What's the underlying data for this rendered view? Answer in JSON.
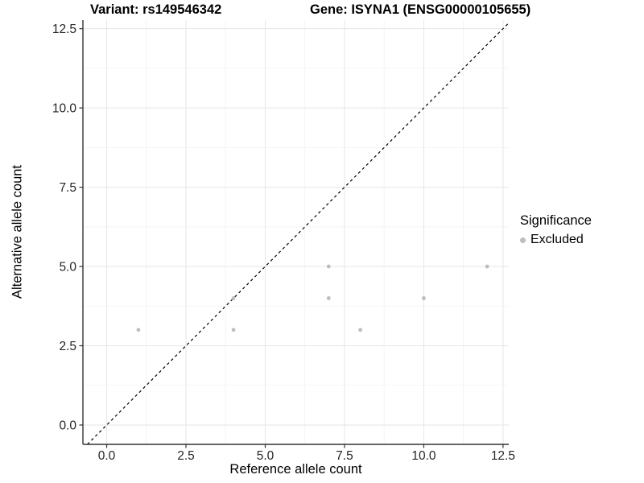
{
  "chart_data": {
    "type": "scatter",
    "title_left": "Variant: rs149546342",
    "title_right": "Gene: ISYNA1 (ENSG00000105655)",
    "xlabel": "Reference allele count",
    "ylabel": "Alternative allele count",
    "x_ticks": [
      0,
      2.5,
      5,
      7.5,
      10,
      12.5
    ],
    "x_tick_labels": [
      "0.0",
      "2.5",
      "5.0",
      "7.5",
      "10.0",
      "12.5"
    ],
    "y_ticks": [
      0,
      2.5,
      5,
      7.5,
      10,
      12.5
    ],
    "y_tick_labels": [
      "0.0",
      "2.5",
      "5.0",
      "7.5",
      "10.0",
      "12.5"
    ],
    "x_minor_ticks": [
      1.25,
      3.75,
      6.25,
      8.75,
      11.25
    ],
    "y_minor_ticks": [
      1.25,
      3.75,
      6.25,
      8.75,
      11.25
    ],
    "xlim": [
      -0.75,
      12.68
    ],
    "ylim": [
      -0.61,
      12.77
    ],
    "grid": true,
    "legend_position": "right",
    "identity_line": {
      "equation": "y = x",
      "style": "dashed",
      "color": "#000000"
    },
    "series": [
      {
        "name": "Excluded",
        "color": "#bdbdbd",
        "points": [
          {
            "x": 1,
            "y": 3
          },
          {
            "x": 4,
            "y": 3
          },
          {
            "x": 4,
            "y": 4
          },
          {
            "x": 7,
            "y": 4
          },
          {
            "x": 7,
            "y": 5
          },
          {
            "x": 8,
            "y": 3
          },
          {
            "x": 10,
            "y": 4
          },
          {
            "x": 12,
            "y": 5
          }
        ]
      }
    ],
    "legend": {
      "title": "Significance",
      "items": [
        {
          "label": "Excluded",
          "color": "#bdbdbd"
        }
      ]
    },
    "colors": {
      "background": "#ffffff",
      "grid_major": "#e6e6e6",
      "grid_minor": "#f2f2f2",
      "axis_line": "#333333",
      "tick_mark": "#333333",
      "tick_label": "#262626",
      "point": "#bdbdbd"
    }
  }
}
